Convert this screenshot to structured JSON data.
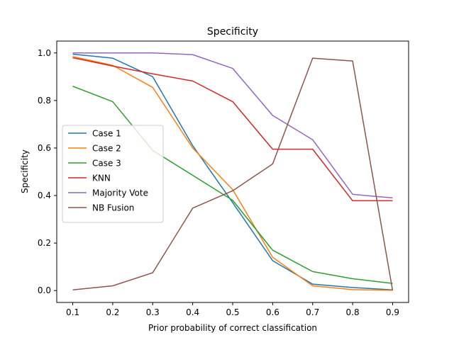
{
  "chart_data": {
    "type": "line",
    "title": "Specificity",
    "xlabel": "Prior probability of correct classification",
    "ylabel": "Specificity",
    "xlim": [
      0.06,
      0.94
    ],
    "ylim": [
      -0.05,
      1.05
    ],
    "x": [
      0.1,
      0.2,
      0.3,
      0.4,
      0.5,
      0.6,
      0.7,
      0.8,
      0.9
    ],
    "xticks": [
      "0.1",
      "0.2",
      "0.3",
      "0.4",
      "0.5",
      "0.6",
      "0.7",
      "0.8",
      "0.9"
    ],
    "yticks": [
      "0.0",
      "0.2",
      "0.4",
      "0.6",
      "0.8",
      "1.0"
    ],
    "grid": false,
    "legend_position": "center-left",
    "series": [
      {
        "name": "Case 1",
        "color": "#1f77b4",
        "values": [
          0.995,
          0.978,
          0.9,
          0.61,
          0.37,
          0.126,
          0.027,
          0.013,
          0.003
        ]
      },
      {
        "name": "Case 2",
        "color": "#ff7f0e",
        "values": [
          0.985,
          0.948,
          0.855,
          0.6,
          0.425,
          0.14,
          0.02,
          0.004,
          0.001
        ]
      },
      {
        "name": "Case 3",
        "color": "#2ca02c",
        "values": [
          0.86,
          0.795,
          0.59,
          0.485,
          0.38,
          0.17,
          0.08,
          0.05,
          0.03
        ]
      },
      {
        "name": "KNN",
        "color": "#d62728",
        "values": [
          0.98,
          0.945,
          0.912,
          0.882,
          0.795,
          0.595,
          0.595,
          0.378,
          0.378
        ]
      },
      {
        "name": "Majority Vote",
        "color": "#9467bd",
        "values": [
          1.0,
          1.0,
          1.0,
          0.993,
          0.935,
          0.737,
          0.635,
          0.405,
          0.39
        ]
      },
      {
        "name": "NB Fusion",
        "color": "#8c564b",
        "values": [
          0.003,
          0.02,
          0.075,
          0.347,
          0.42,
          0.533,
          0.978,
          0.966,
          0.001
        ]
      }
    ]
  }
}
